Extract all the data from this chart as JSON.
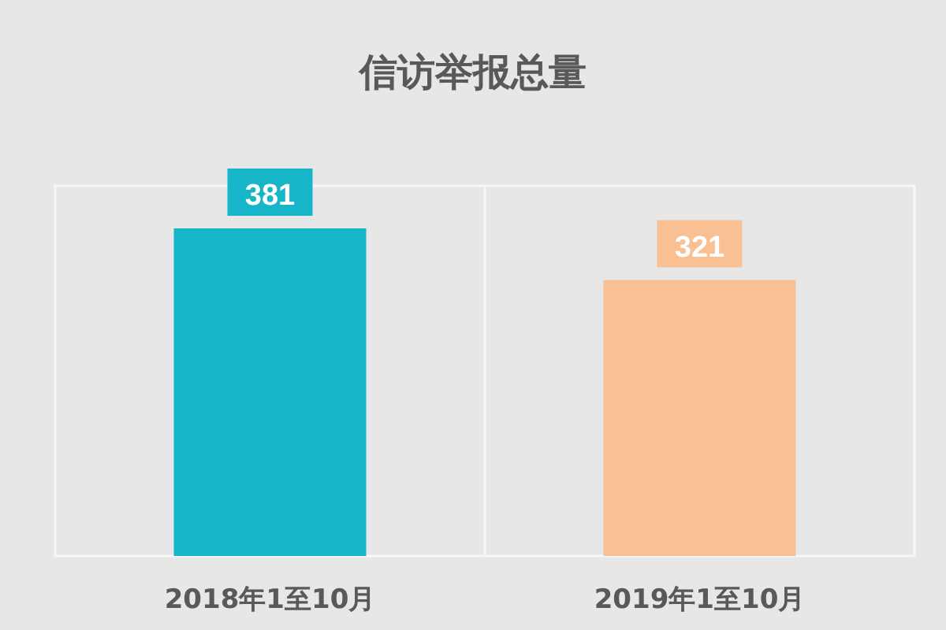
{
  "chart_data": {
    "type": "bar",
    "title": "信访举报总量",
    "categories": [
      "2018年1至10月",
      "2019年1至10月"
    ],
    "values": [
      381,
      321
    ],
    "colors": [
      "#16b6c8",
      "#f9c094"
    ],
    "data_labels": true
  }
}
